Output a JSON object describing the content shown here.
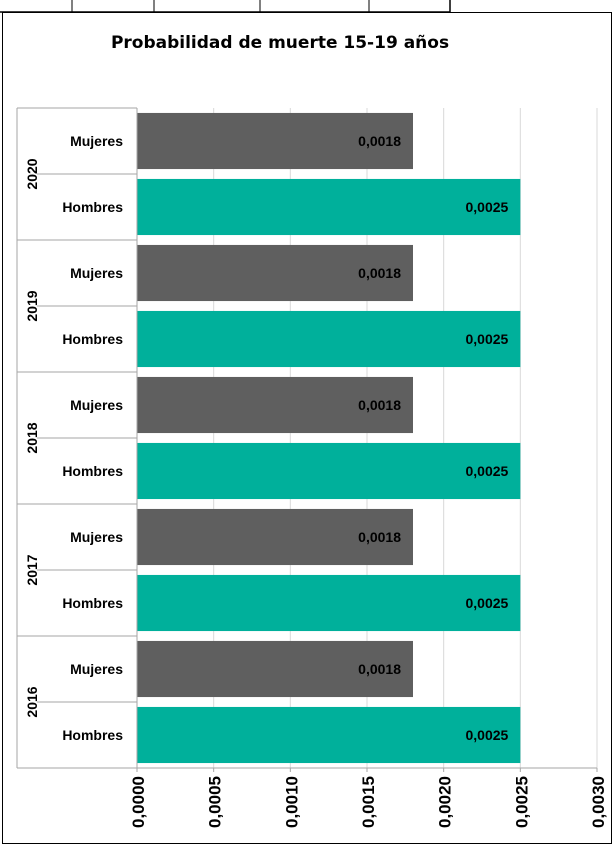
{
  "top_strip": {
    "cells": [
      "",
      "",
      "",
      ""
    ]
  },
  "chart_data": {
    "type": "bar",
    "orientation": "horizontal",
    "title": "Probabilidad de muerte 15-19 años",
    "xlabel": "",
    "ylabel": "",
    "xlim": [
      0,
      0.003
    ],
    "x_ticks": [
      "0,0000",
      "0,0005",
      "0,0010",
      "0,0015",
      "0,0020",
      "0,0025",
      "0,0030"
    ],
    "x_tick_values": [
      0,
      0.0005,
      0.001,
      0.0015,
      0.002,
      0.0025,
      0.003
    ],
    "grid": "vertical",
    "legend": "none",
    "groups": [
      {
        "year": "2020",
        "bars": [
          {
            "label": "Mujeres",
            "value": 0.0018,
            "display": "0,0018",
            "color": "#5f5f5f"
          },
          {
            "label": "Hombres",
            "value": 0.0025,
            "display": "0,0025",
            "color": "#00b09b"
          }
        ]
      },
      {
        "year": "2019",
        "bars": [
          {
            "label": "Mujeres",
            "value": 0.0018,
            "display": "0,0018",
            "color": "#5f5f5f"
          },
          {
            "label": "Hombres",
            "value": 0.0025,
            "display": "0,0025",
            "color": "#00b09b"
          }
        ]
      },
      {
        "year": "2018",
        "bars": [
          {
            "label": "Mujeres",
            "value": 0.0018,
            "display": "0,0018",
            "color": "#5f5f5f"
          },
          {
            "label": "Hombres",
            "value": 0.0025,
            "display": "0,0025",
            "color": "#00b09b"
          }
        ]
      },
      {
        "year": "2017",
        "bars": [
          {
            "label": "Mujeres",
            "value": 0.0018,
            "display": "0,0018",
            "color": "#5f5f5f"
          },
          {
            "label": "Hombres",
            "value": 0.0025,
            "display": "0,0025",
            "color": "#00b09b"
          }
        ]
      },
      {
        "year": "2016",
        "bars": [
          {
            "label": "Mujeres",
            "value": 0.0018,
            "display": "0,0018",
            "color": "#5f5f5f"
          },
          {
            "label": "Hombres",
            "value": 0.0025,
            "display": "0,0025",
            "color": "#00b09b"
          }
        ]
      }
    ]
  }
}
